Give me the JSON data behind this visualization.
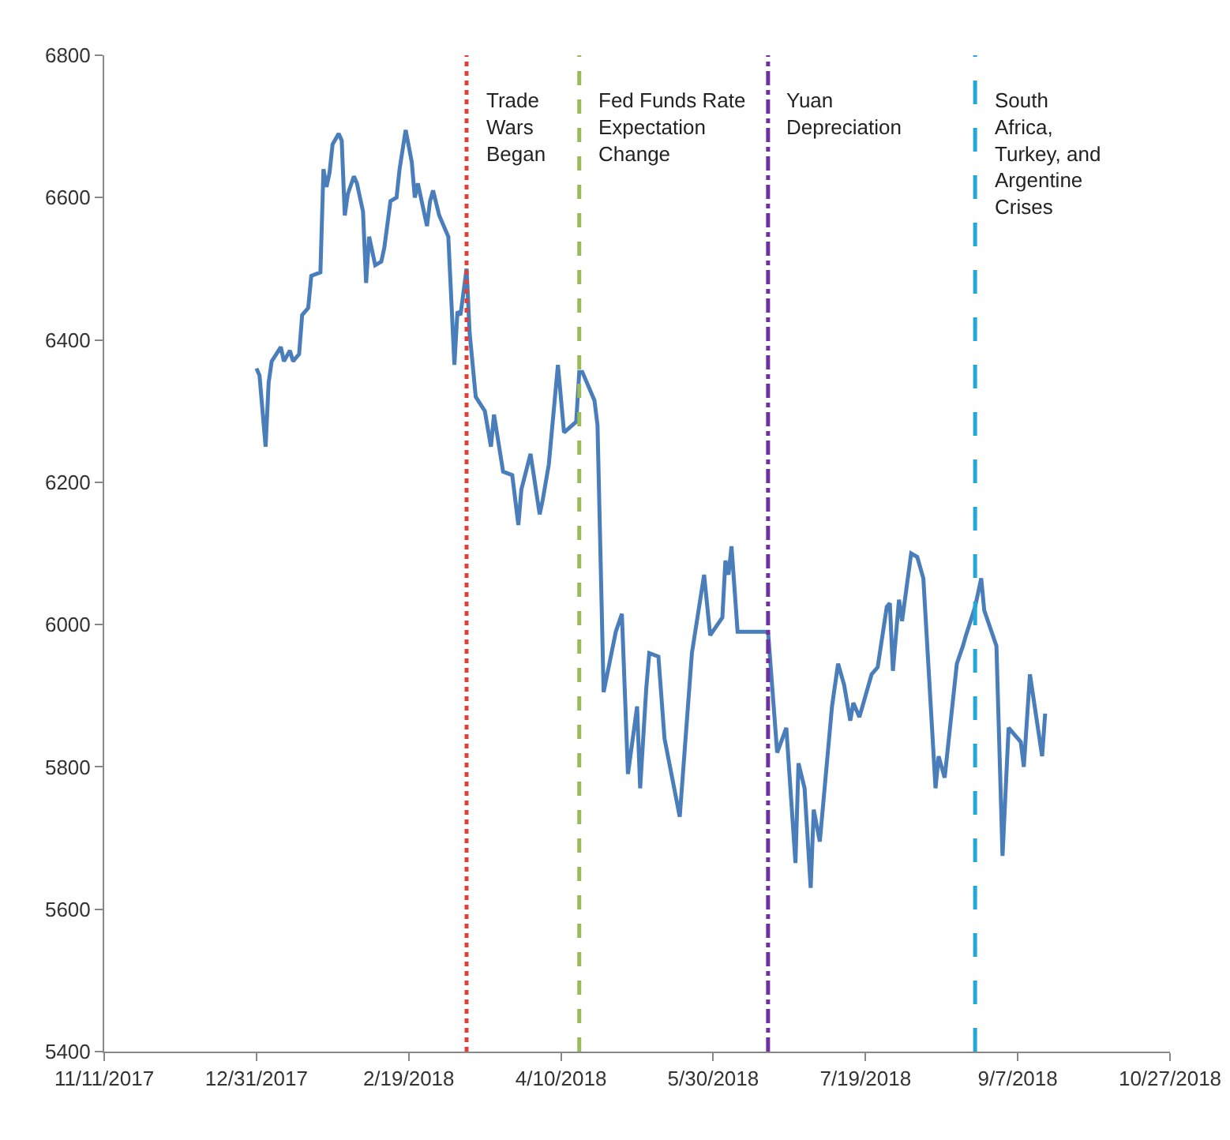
{
  "chart_data": {
    "type": "line",
    "x": [
      "2017-12-31",
      "2018-01-01",
      "2018-01-03",
      "2018-01-04",
      "2018-01-05",
      "2018-01-08",
      "2018-01-09",
      "2018-01-11",
      "2018-01-12",
      "2018-01-14",
      "2018-01-15",
      "2018-01-17",
      "2018-01-18",
      "2018-01-21",
      "2018-01-22",
      "2018-01-23",
      "2018-01-24",
      "2018-01-25",
      "2018-01-27",
      "2018-01-28",
      "2018-01-29",
      "2018-01-30",
      "2018-02-01",
      "2018-02-02",
      "2018-02-04",
      "2018-02-05",
      "2018-02-06",
      "2018-02-08",
      "2018-02-10",
      "2018-02-11",
      "2018-02-13",
      "2018-02-15",
      "2018-02-16",
      "2018-02-18",
      "2018-02-20",
      "2018-02-21",
      "2018-02-22",
      "2018-02-23",
      "2018-02-25",
      "2018-02-26",
      "2018-02-27",
      "2018-03-01",
      "2018-03-04",
      "2018-03-06",
      "2018-03-07",
      "2018-03-08",
      "2018-03-10",
      "2018-03-11",
      "2018-03-13",
      "2018-03-16",
      "2018-03-18",
      "2018-03-19",
      "2018-03-22",
      "2018-03-25",
      "2018-03-27",
      "2018-03-28",
      "2018-03-31",
      "2018-04-03",
      "2018-04-04",
      "2018-04-06",
      "2018-04-09",
      "2018-04-11",
      "2018-04-15",
      "2018-04-16",
      "2018-04-17",
      "2018-04-21",
      "2018-04-22",
      "2018-04-24",
      "2018-04-28",
      "2018-04-30",
      "2018-05-02",
      "2018-05-05",
      "2018-05-06",
      "2018-05-08",
      "2018-05-09",
      "2018-05-12",
      "2018-05-14",
      "2018-05-19",
      "2018-05-23",
      "2018-05-27",
      "2018-05-29",
      "2018-06-02",
      "2018-06-03",
      "2018-06-04",
      "2018-06-05",
      "2018-06-07",
      "2018-06-17",
      "2018-06-20",
      "2018-06-23",
      "2018-06-26",
      "2018-06-27",
      "2018-06-29",
      "2018-07-01",
      "2018-07-02",
      "2018-07-04",
      "2018-07-08",
      "2018-07-10",
      "2018-07-12",
      "2018-07-14",
      "2018-07-15",
      "2018-07-17",
      "2018-07-21",
      "2018-07-23",
      "2018-07-26",
      "2018-07-27",
      "2018-07-28",
      "2018-07-30",
      "2018-07-31",
      "2018-08-03",
      "2018-08-05",
      "2018-08-07",
      "2018-08-11",
      "2018-08-12",
      "2018-08-14",
      "2018-08-18",
      "2018-08-20",
      "2018-08-21",
      "2018-08-24",
      "2018-08-26",
      "2018-08-27",
      "2018-08-31",
      "2018-09-02",
      "2018-09-04",
      "2018-09-08",
      "2018-09-09",
      "2018-09-11",
      "2018-09-15",
      "2018-09-16"
    ],
    "series": [
      {
        "color": "#4a7ebb",
        "values": [
          6360,
          6350,
          6250,
          6340,
          6370,
          6390,
          6370,
          6385,
          6370,
          6380,
          6435,
          6445,
          6490,
          6495,
          6640,
          6615,
          6635,
          6675,
          6690,
          6680,
          6575,
          6605,
          6630,
          6620,
          6580,
          6480,
          6545,
          6505,
          6510,
          6530,
          6595,
          6600,
          6640,
          6695,
          6650,
          6600,
          6620,
          6600,
          6560,
          6595,
          6610,
          6575,
          6545,
          6365,
          6440,
          6435,
          6500,
          6410,
          6320,
          6300,
          6250,
          6295,
          6215,
          6210,
          6140,
          6190,
          6240,
          6155,
          6175,
          6225,
          6365,
          6270,
          6285,
          6355,
          6355,
          6315,
          6280,
          5905,
          5990,
          6015,
          5790,
          5885,
          5770,
          5910,
          5960,
          5955,
          5840,
          5730,
          5960,
          6070,
          5985,
          6010,
          6090,
          6070,
          6110,
          5990,
          5990,
          5820,
          5855,
          5665,
          5805,
          5770,
          5630,
          5740,
          5695,
          5885,
          5945,
          5915,
          5865,
          5890,
          5870,
          5930,
          5940,
          6025,
          6030,
          5935,
          6035,
          6005,
          6100,
          6095,
          6065,
          5770,
          5815,
          5785,
          5945,
          5970,
          5985,
          6025,
          6065,
          6020,
          5970,
          5675,
          5855,
          5835,
          5800,
          5930,
          5815,
          5875
        ]
      }
    ],
    "xlim": [
      "2017-11-11",
      "2018-10-27"
    ],
    "xticks": [
      {
        "value": "2017-11-11",
        "label": "11/11/2017"
      },
      {
        "value": "2017-12-31",
        "label": "12/31/2017"
      },
      {
        "value": "2018-02-19",
        "label": "2/19/2018"
      },
      {
        "value": "2018-04-10",
        "label": "4/10/2018"
      },
      {
        "value": "2018-05-30",
        "label": "5/30/2018"
      },
      {
        "value": "2018-07-19",
        "label": "7/19/2018"
      },
      {
        "value": "2018-09-07",
        "label": "9/7/2018"
      },
      {
        "value": "2018-10-27",
        "label": "10/27/2018"
      }
    ],
    "ylim": [
      5400,
      6800
    ],
    "yticks": [
      5400,
      5600,
      5800,
      6000,
      6200,
      6400,
      6600,
      6800
    ],
    "line_style": "solid",
    "ref_lines": [
      {
        "axis": "x",
        "value": "2018-03-10",
        "label": "Trade\nWars\nBegan",
        "color": "#e0403a",
        "line_style": "dotted"
      },
      {
        "axis": "x",
        "value": "2018-04-16",
        "label": "Fed Funds Rate\nExpectation\nChange",
        "color": "#9bbb59",
        "line_style": "dashed"
      },
      {
        "axis": "x",
        "value": "2018-06-17",
        "label": "Yuan\nDepreciation",
        "color": "#7030a0",
        "line_style": "dashdot"
      },
      {
        "axis": "x",
        "value": "2018-08-24",
        "label": "South\nAfrica,\nTurkey, and\nArgentine\nCrises",
        "color": "#23a8d8",
        "line_style": "longdash"
      }
    ]
  }
}
